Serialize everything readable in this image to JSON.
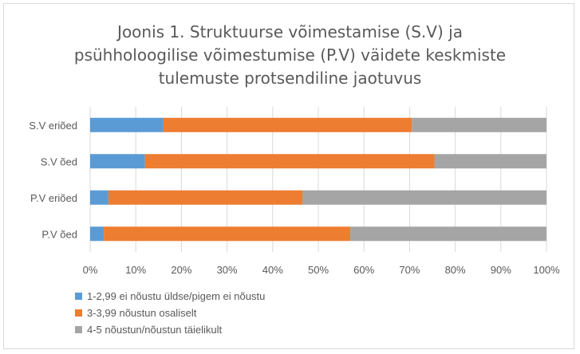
{
  "chart_data": {
    "type": "bar",
    "orientation": "horizontal",
    "stacked": "percent",
    "title_lines": [
      "Joonis 1. Struktuurse  võimestamise (S.V) ja",
      "psühholoogilise võimestumise (P.V) väidete keskmiste",
      "tulemuste protsendiline jaotuvus"
    ],
    "categories": [
      "S.V eriõed",
      "S.V õed",
      "P.V eriõed",
      "P.V õed"
    ],
    "series": [
      {
        "name": "1-2,99 ei nõustu üldse/pigem ei nõustu",
        "color": "#5b9bd5",
        "values": [
          16,
          12,
          4,
          3
        ]
      },
      {
        "name": "3-3,99 nõustun osaliselt",
        "color": "#ed7d31",
        "values": [
          54.5,
          63.5,
          42.5,
          54
        ]
      },
      {
        "name": "4-5 nõustun/nõustun täielikult",
        "color": "#a5a5a5",
        "values": [
          29.5,
          24.5,
          53.5,
          43
        ]
      }
    ],
    "xlim": [
      0,
      100
    ],
    "xticks": [
      "0%",
      "10%",
      "20%",
      "30%",
      "40%",
      "50%",
      "60%",
      "70%",
      "80%",
      "90%",
      "100%"
    ],
    "grid": true,
    "legend_position": "bottom-left",
    "gridline_color": "#d9d9d9"
  }
}
